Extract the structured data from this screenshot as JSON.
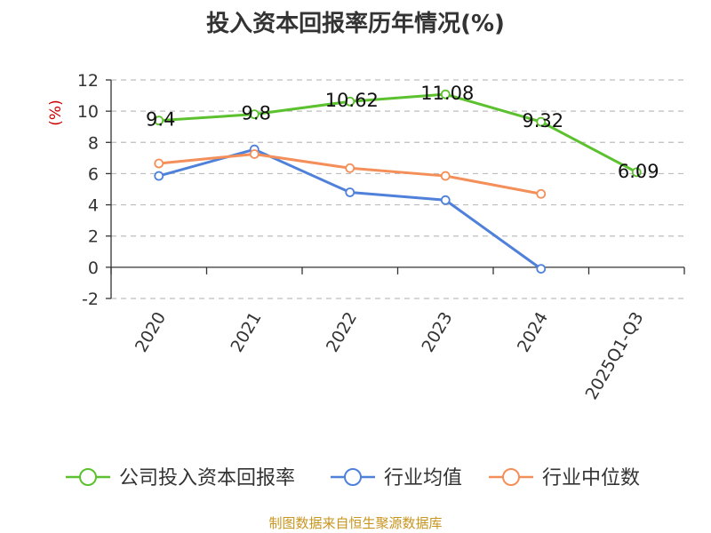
{
  "chart_data": {
    "type": "line",
    "title": "投入资本回报率历年情况(%)",
    "ylabel": "(%)",
    "categories": [
      "2020",
      "2021",
      "2022",
      "2023",
      "2024",
      "2025Q1-Q3"
    ],
    "ylim": [
      -2,
      12
    ],
    "yticks": [
      -2,
      0,
      2,
      4,
      6,
      8,
      10,
      12
    ],
    "grid": true,
    "legend_position": "bottom",
    "series": [
      {
        "name": "公司投入资本回报率",
        "color": "#5cc12e",
        "values": [
          9.4,
          9.8,
          10.62,
          11.08,
          9.32,
          6.09
        ],
        "labels": [
          "9.4",
          "9.8",
          "10.62",
          "11.08",
          "9.32",
          "6.09"
        ]
      },
      {
        "name": "行业均值",
        "color": "#4f81da",
        "values": [
          5.85,
          7.55,
          4.8,
          4.3,
          -0.1,
          null
        ]
      },
      {
        "name": "行业中位数",
        "color": "#f48f5a",
        "values": [
          6.65,
          7.25,
          6.35,
          5.85,
          4.7,
          null
        ]
      }
    ]
  },
  "footer": {
    "source": "制图数据来自恒生聚源数据库"
  }
}
